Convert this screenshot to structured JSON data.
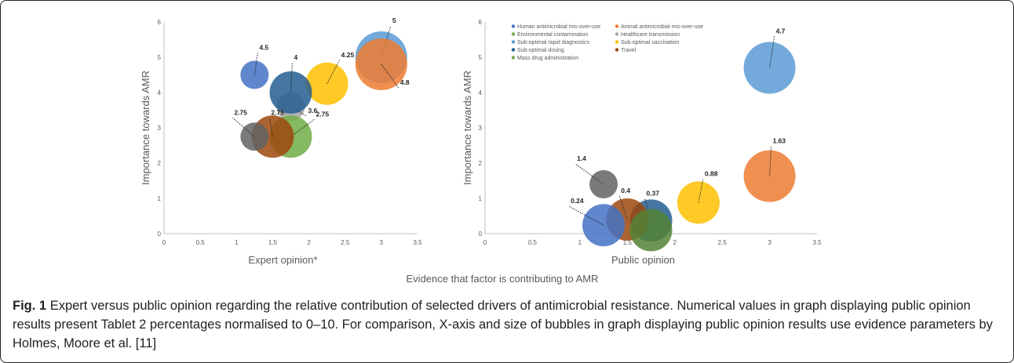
{
  "figure": {
    "shared_xlabel": "Evidence that factor is contributing to AMR",
    "caption_label": "Fig. 1",
    "caption_text": "Expert versus public opinion regarding the relative contribution of selected drivers of antimicrobial resistance. Numerical values in graph displaying public opinion results present Tablet 2 percentages normalised to 0–10. For comparison, X-axis and size of bubbles in graph displaying public opinion results use evidence parameters by Holmes, Moore et al. [11]"
  },
  "chart_data": [
    {
      "type": "scatter",
      "subtype": "bubble",
      "xlabel": "Expert opinion*",
      "ylabel": "Importance towards AMR",
      "xlim": [
        0,
        3.5
      ],
      "ylim": [
        0,
        6
      ],
      "xticks": [
        "0",
        "0.5",
        "1",
        "1.5",
        "2",
        "2.5",
        "3",
        "3.5"
      ],
      "yticks": [
        "0",
        "1",
        "2",
        "3",
        "4",
        "5",
        "6"
      ],
      "grid": false,
      "points": [
        {
          "series": "Sub-optimal rapid diagnostics",
          "x": 3.0,
          "y": 5.0,
          "label": "5",
          "color": "#5b9bd5",
          "size": "large"
        },
        {
          "series": "Animal antimicrobial mis-over-use",
          "x": 3.0,
          "y": 4.8,
          "label": "4.8",
          "color": "#ed7d31",
          "size": "large"
        },
        {
          "series": "Human antimicrobial mis-over-use",
          "x": 1.25,
          "y": 4.5,
          "label": "4.5",
          "color": "#4472c4",
          "size": "small"
        },
        {
          "series": "Sub-optimal vaccination",
          "x": 2.25,
          "y": 4.25,
          "label": "4.25",
          "color": "#ffc000",
          "size": "medium"
        },
        {
          "series": "Healthcare transmission",
          "x": 1.75,
          "y": 3.6,
          "label": "3.6",
          "color": "#a5a5a5",
          "size": "small"
        },
        {
          "series": "Sub-optimal dosing",
          "x": 1.75,
          "y": 4.0,
          "label": "4",
          "color": "#255e91",
          "size": "medium"
        },
        {
          "series": "Mass drug administration",
          "x": 1.75,
          "y": 2.75,
          "label": "2.75",
          "color": "#70ad47",
          "size": "medium"
        },
        {
          "series": "Travel",
          "x": 1.5,
          "y": 2.75,
          "label": "2.75",
          "color": "#9e480e",
          "size": "medium"
        },
        {
          "series": "Environmental contamination",
          "x": 1.25,
          "y": 2.75,
          "label": "2.75",
          "color": "#636363",
          "size": "small"
        }
      ]
    },
    {
      "type": "scatter",
      "subtype": "bubble",
      "xlabel": "Public opinion",
      "ylabel": "Importance towards AMR",
      "xlim": [
        0,
        3.5
      ],
      "ylim": [
        0,
        6
      ],
      "xticks": [
        "0",
        "0.5",
        "1",
        "1.5",
        "2",
        "2.5",
        "3",
        "3.5"
      ],
      "yticks": [
        "0",
        "1",
        "2",
        "3",
        "4",
        "5",
        "6"
      ],
      "grid": false,
      "legend_position": "top-left",
      "legend": [
        {
          "name": "Human antimicrobial mis-over-use",
          "color": "#4472c4"
        },
        {
          "name": "Animal antimicrobial mis-over-use",
          "color": "#ed7d31"
        },
        {
          "name": "Environmental contamination",
          "color": "#70ad47"
        },
        {
          "name": "Healthcare transmission",
          "color": "#a5a5a5"
        },
        {
          "name": "Sub-optimal rapid diagnostics",
          "color": "#5b9bd5"
        },
        {
          "name": "Sub-optimal vaccination",
          "color": "#ffc000"
        },
        {
          "name": "Sub-optimal dosing",
          "color": "#255e91"
        },
        {
          "name": "Travel",
          "color": "#9e480e"
        },
        {
          "name": "Mass drug administration",
          "color": "#70ad47"
        }
      ],
      "points": [
        {
          "series": "Sub-optimal rapid diagnostics",
          "x": 3.0,
          "y": 4.7,
          "label": "4.7",
          "color": "#5b9bd5",
          "size": "large"
        },
        {
          "series": "Animal antimicrobial mis-over-use",
          "x": 3.0,
          "y": 1.63,
          "label": "1.63",
          "color": "#ed7d31",
          "size": "large"
        },
        {
          "series": "Healthcare transmission",
          "x": 1.25,
          "y": 1.4,
          "label": "1.4",
          "color": "#636363",
          "size": "small"
        },
        {
          "series": "Sub-optimal vaccination",
          "x": 2.25,
          "y": 0.88,
          "label": "0.88",
          "color": "#ffc000",
          "size": "medium"
        },
        {
          "series": "Sub-optimal dosing",
          "x": 1.75,
          "y": 0.37,
          "label": "0.37",
          "color": "#255e91",
          "size": "medium"
        },
        {
          "series": "Travel",
          "x": 1.5,
          "y": 0.4,
          "label": "0.4",
          "color": "#9e480e",
          "size": "medium"
        },
        {
          "series": "Human antimicrobial mis-over-use",
          "x": 1.25,
          "y": 0.24,
          "label": "0.24",
          "color": "#4472c4",
          "size": "medium"
        },
        {
          "series": "Mass drug administration",
          "x": 1.75,
          "y": 0.1,
          "label": "",
          "color": "#548235",
          "size": "medium"
        }
      ]
    }
  ]
}
